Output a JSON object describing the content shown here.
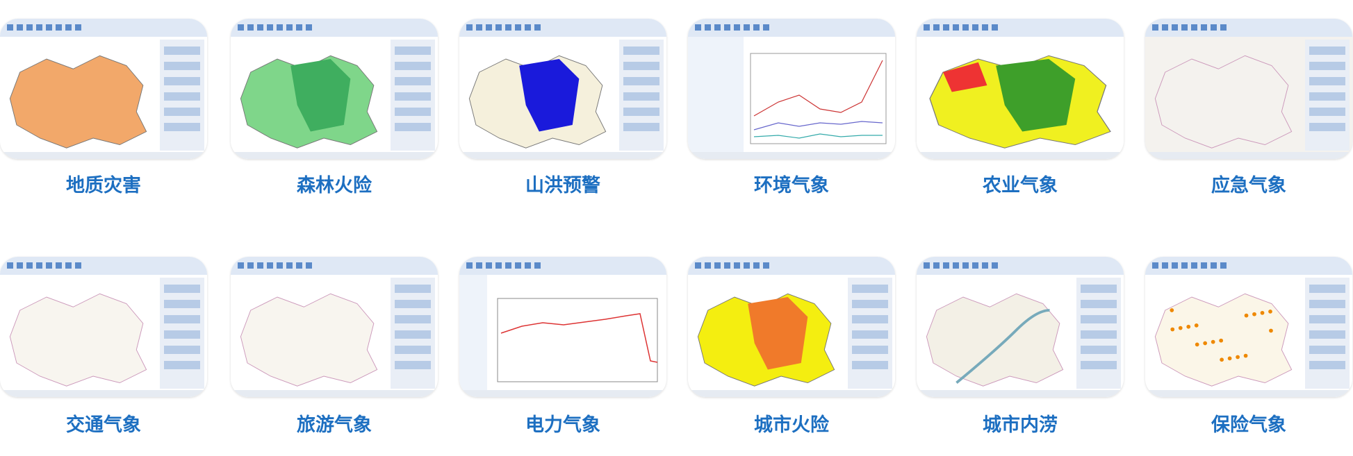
{
  "rows": [
    [
      "地质灾害",
      "森林火险",
      "山洪预警",
      "环境气象",
      "农业气象",
      "应急气象"
    ],
    [
      "交通气象",
      "旅游气象",
      "电力气象",
      "城市火险",
      "城市内涝",
      "保险气象"
    ]
  ]
}
